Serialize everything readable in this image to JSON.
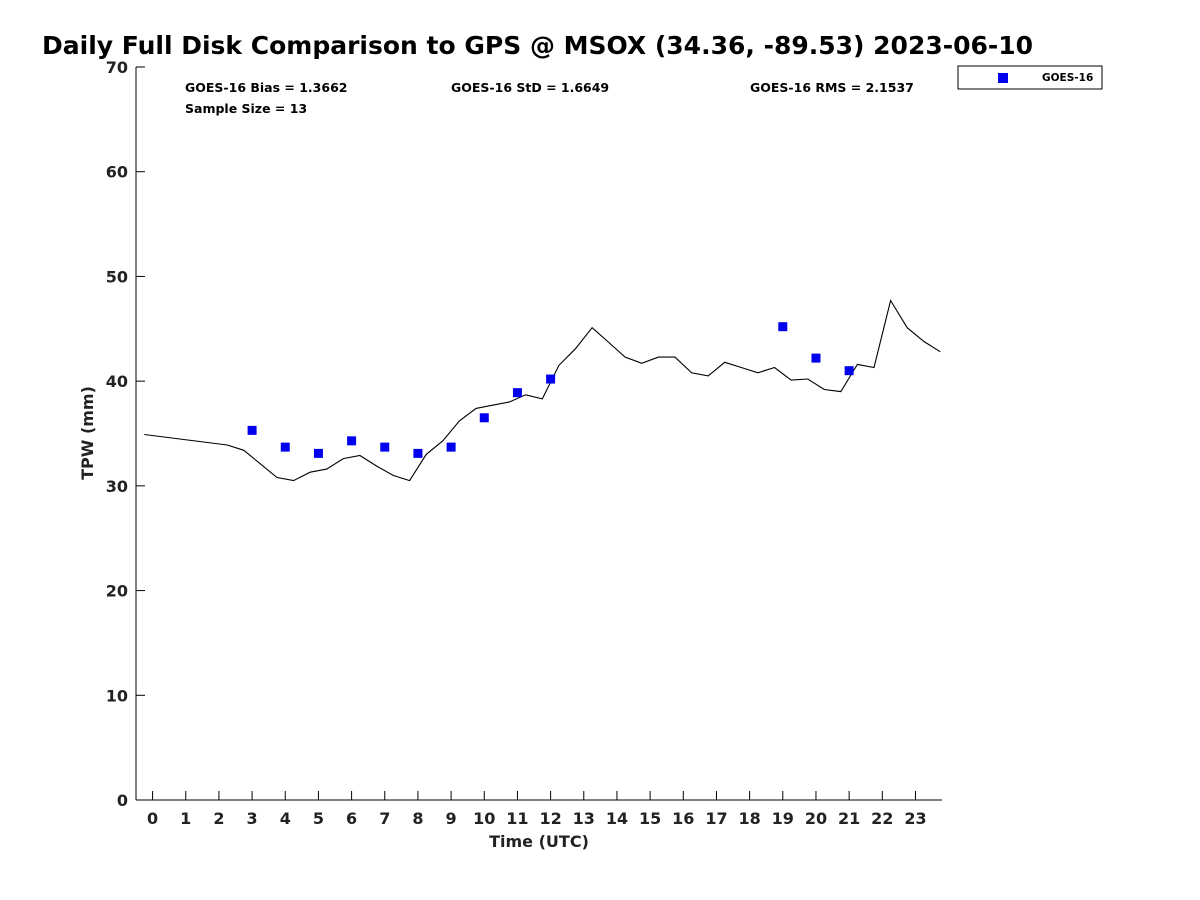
{
  "chart_data": {
    "type": "line",
    "title": "Daily Full Disk Comparison to GPS @ MSOX (34.36, -89.53) 2023-06-10",
    "xlabel": "Time (UTC)",
    "ylabel": "TPW (mm)",
    "xlim": [
      -0.5,
      23.8
    ],
    "ylim": [
      0,
      70
    ],
    "x_ticks": [
      0,
      1,
      2,
      3,
      4,
      5,
      6,
      7,
      8,
      9,
      10,
      11,
      12,
      13,
      14,
      15,
      16,
      17,
      18,
      19,
      20,
      21,
      22,
      23
    ],
    "y_ticks": [
      0,
      10,
      20,
      30,
      40,
      50,
      60,
      70
    ],
    "stats": {
      "bias": "GOES-16 Bias = 1.3662",
      "std": "GOES-16 StD = 1.6649",
      "rms": "GOES-16 RMS = 2.1537",
      "sample": "Sample Size = 13"
    },
    "legend": {
      "position": "top-right",
      "entries": [
        "GOES-16"
      ]
    },
    "colors": {
      "goes16": "#0000ee",
      "gps_line": "#000000"
    },
    "series": [
      {
        "kind": "line",
        "x": [
          -0.25,
          2.25,
          2.75,
          3.25,
          3.75,
          4.25,
          4.75,
          5.25,
          5.75,
          6.25,
          6.75,
          7.25,
          7.75,
          8.25,
          8.75,
          9.25,
          9.75,
          10.25,
          10.75,
          11.25,
          11.75,
          12.25,
          12.75,
          13.25,
          13.75,
          14.25,
          14.75,
          15.25,
          15.75,
          16.25,
          16.75,
          17.25,
          17.75,
          18.25,
          18.75,
          19.25,
          19.75,
          20.25,
          20.75,
          21.25,
          21.75,
          22.25,
          22.75,
          23.25,
          23.75
        ],
        "values": [
          34.9,
          33.9,
          33.4,
          32.1,
          30.8,
          30.5,
          31.3,
          31.6,
          32.6,
          32.9,
          31.9,
          31.0,
          30.5,
          33.0,
          34.3,
          36.2,
          37.4,
          37.7,
          38.0,
          38.7,
          38.3,
          41.5,
          43.1,
          45.1,
          43.7,
          42.3,
          41.7,
          42.3,
          42.3,
          40.8,
          40.5,
          41.8,
          41.3,
          40.8,
          41.3,
          40.1,
          40.2,
          39.2,
          39.0,
          41.6,
          41.3,
          47.7,
          45.1,
          43.8,
          42.8
        ]
      },
      {
        "name": "GOES-16",
        "kind": "scatter",
        "x": [
          3,
          4,
          5,
          6,
          7,
          8,
          9,
          10,
          11,
          12,
          19,
          20,
          21
        ],
        "values": [
          35.3,
          33.7,
          33.1,
          34.3,
          33.7,
          33.1,
          33.7,
          36.5,
          38.9,
          40.2,
          45.2,
          42.2,
          41.0
        ]
      }
    ]
  }
}
